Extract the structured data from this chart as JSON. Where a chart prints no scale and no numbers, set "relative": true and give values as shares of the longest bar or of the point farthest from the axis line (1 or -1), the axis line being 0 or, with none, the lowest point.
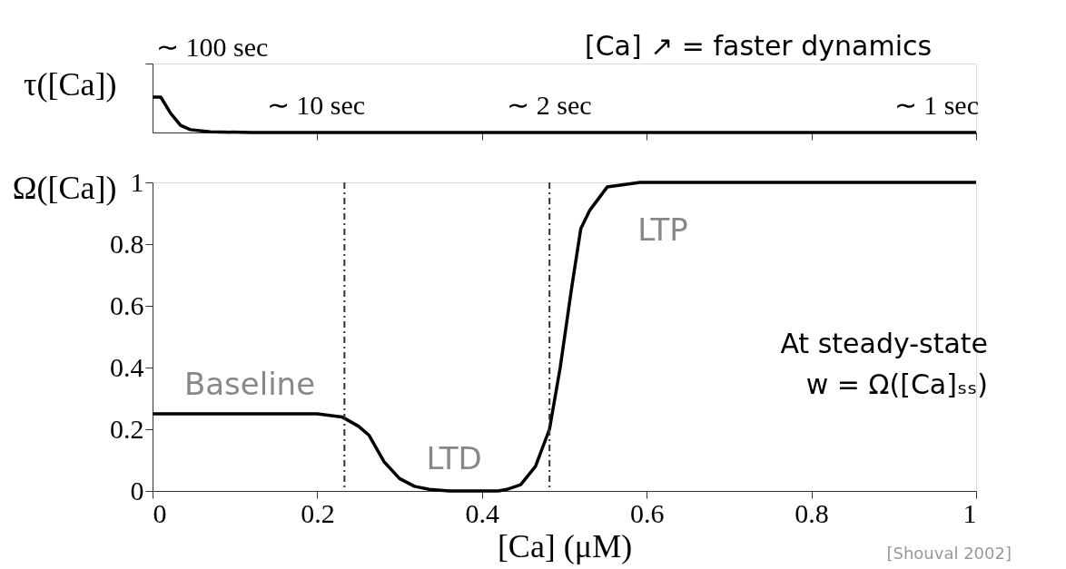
{
  "chart_data": [
    {
      "type": "line",
      "ylabel": "τ([Ca])",
      "relative": true,
      "color": "#000000",
      "x": [
        0,
        0.01,
        0.022,
        0.034,
        0.046,
        0.07,
        0.12,
        1
      ],
      "values": [
        1,
        1,
        0.54,
        0.2,
        0.08,
        0.02,
        0,
        0
      ],
      "xlim": [
        0,
        1
      ],
      "xticks": [
        {
          "value": 0.2,
          "label": null
        },
        {
          "value": 0.4,
          "label": null
        },
        {
          "value": 0.6,
          "label": null
        },
        {
          "value": 0.8,
          "label": null
        },
        {
          "value": 1,
          "label": null
        }
      ],
      "tick_labels": false,
      "grid": false,
      "annotations": [
        "∼ 100 sec",
        "∼ 10 sec",
        "∼ 2 sec",
        "∼ 1 sec",
        "[Ca] ↗ = faster dynamics"
      ]
    },
    {
      "type": "line",
      "ylabel": "Ω([Ca])",
      "xlabel": "[Ca] (μM)",
      "color": "#000000",
      "x": [
        0,
        0.2,
        0.23,
        0.25,
        0.263,
        0.281,
        0.3,
        0.318,
        0.336,
        0.36,
        0.42,
        0.43,
        0.447,
        0.465,
        0.482,
        0.495,
        0.509,
        0.52,
        0.531,
        0.552,
        0.592,
        1
      ],
      "values": [
        0.25,
        0.25,
        0.24,
        0.21,
        0.18,
        0.095,
        0.04,
        0.015,
        0.005,
        0,
        0,
        0.005,
        0.02,
        0.08,
        0.2,
        0.4,
        0.66,
        0.85,
        0.91,
        0.985,
        1,
        1
      ],
      "xlim": [
        0,
        1
      ],
      "ylim": [
        0,
        1
      ],
      "xticks": [
        0,
        0.2,
        0.4,
        0.6,
        0.8,
        1
      ],
      "yticks": [
        0,
        0.2,
        0.4,
        0.6,
        0.8,
        1
      ],
      "grid": false,
      "ref_lines": [
        {
          "axis": "x",
          "value": 0.233,
          "line_style": "dashed",
          "color": "#333333"
        },
        {
          "axis": "x",
          "value": 0.482,
          "line_style": "dashed",
          "color": "#333333"
        }
      ],
      "annotations": [
        "Baseline",
        "LTD",
        "LTP",
        "At steady-state\nw = Ω([Ca]ₛₛ)",
        "[Shouval 2002]"
      ]
    }
  ]
}
